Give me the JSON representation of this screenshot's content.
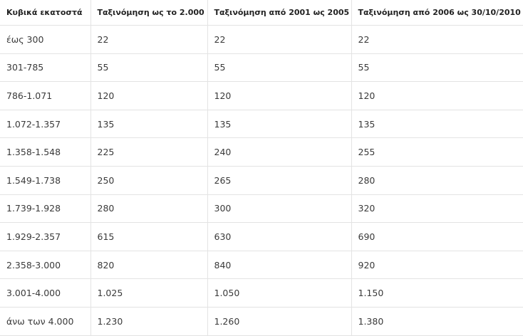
{
  "table": {
    "header": [
      "Κυβικά εκατοστά",
      "Ταξινόμηση ως το 2.000",
      "Ταξινόμηση από 2001 ως 2005",
      "Ταξινόμηση από 2006 ως 30/10/2010"
    ],
    "rows": [
      [
        "έως 300",
        "22",
        "22",
        "22"
      ],
      [
        "301-785",
        "55",
        "55",
        "55"
      ],
      [
        "786-1.071",
        "120",
        "120",
        "120"
      ],
      [
        "1.072-1.357",
        "135",
        "135",
        "135"
      ],
      [
        "1.358-1.548",
        "225",
        "240",
        "255"
      ],
      [
        "1.549-1.738",
        "250",
        "265",
        "280"
      ],
      [
        "1.739-1.928",
        "280",
        "300",
        "320"
      ],
      [
        "1.929-2.357",
        "615",
        "630",
        "690"
      ],
      [
        "2.358-3.000",
        "820",
        "840",
        "920"
      ],
      [
        "3.001-4.000",
        "1.025",
        "1.050",
        "1.150"
      ],
      [
        "άνω των 4.000",
        "1.230",
        "1.260",
        "1.380"
      ]
    ]
  }
}
